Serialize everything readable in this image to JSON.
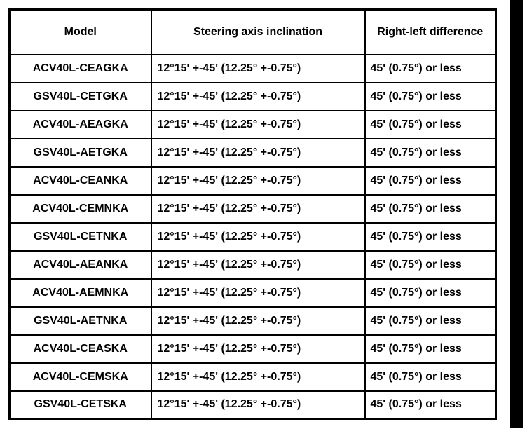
{
  "page": {
    "background_color": "#ffffff",
    "scan_edge_bar_color": "#000000"
  },
  "table": {
    "columns": [
      {
        "key": "model",
        "label": "Model"
      },
      {
        "key": "inclination",
        "label": "Steering axis inclination"
      },
      {
        "key": "difference",
        "label": "Right-left difference"
      }
    ],
    "rows": [
      {
        "model": "ACV40L-CEAGKA",
        "inclination": "12°15' +-45' (12.25° +-0.75°)",
        "difference": "45' (0.75°) or less"
      },
      {
        "model": "GSV40L-CETGKA",
        "inclination": "12°15' +-45' (12.25° +-0.75°)",
        "difference": "45' (0.75°) or less"
      },
      {
        "model": "ACV40L-AEAGKA",
        "inclination": "12°15' +-45' (12.25° +-0.75°)",
        "difference": "45' (0.75°) or less"
      },
      {
        "model": "GSV40L-AETGKA",
        "inclination": "12°15' +-45' (12.25° +-0.75°)",
        "difference": "45' (0.75°) or less"
      },
      {
        "model": "ACV40L-CEANKA",
        "inclination": "12°15' +-45' (12.25° +-0.75°)",
        "difference": "45' (0.75°) or less"
      },
      {
        "model": "ACV40L-CEMNKA",
        "inclination": "12°15' +-45' (12.25° +-0.75°)",
        "difference": "45' (0.75°) or less"
      },
      {
        "model": "GSV40L-CETNKA",
        "inclination": "12°15' +-45' (12.25° +-0.75°)",
        "difference": "45' (0.75°) or less"
      },
      {
        "model": "ACV40L-AEANKA",
        "inclination": "12°15' +-45' (12.25° +-0.75°)",
        "difference": "45' (0.75°) or less"
      },
      {
        "model": "ACV40L-AEMNKA",
        "inclination": "12°15' +-45' (12.25° +-0.75°)",
        "difference": "45' (0.75°) or less"
      },
      {
        "model": "GSV40L-AETNKA",
        "inclination": "12°15' +-45' (12.25° +-0.75°)",
        "difference": "45' (0.75°) or less"
      },
      {
        "model": "ACV40L-CEASKA",
        "inclination": "12°15' +-45' (12.25° +-0.75°)",
        "difference": "45' (0.75°) or less"
      },
      {
        "model": "ACV40L-CEMSKA",
        "inclination": "12°15' +-45' (12.25° +-0.75°)",
        "difference": "45' (0.75°) or less"
      },
      {
        "model": "GSV40L-CETSKA",
        "inclination": "12°15' +-45' (12.25° +-0.75°)",
        "difference": "45' (0.75°) or less"
      }
    ]
  }
}
